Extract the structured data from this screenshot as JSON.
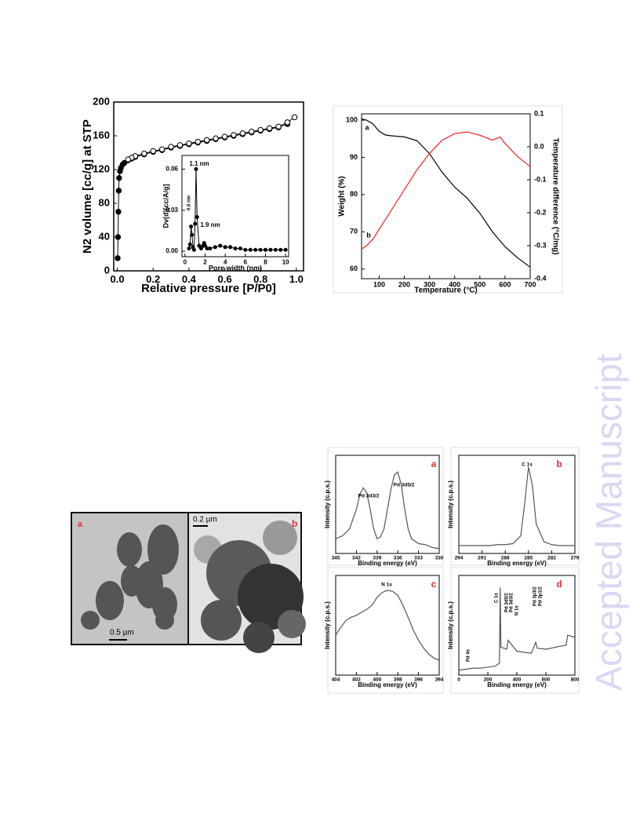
{
  "chart_data": [
    {
      "type": "scatter",
      "xlabel": "Relative pressure [P/P0]",
      "ylabel": "N2 volume [cc/g] at STP",
      "xlim": [
        -0.02,
        1.04
      ],
      "ylim": [
        0,
        200
      ],
      "xticks": [
        {
          "value": 0,
          "label": "0.0"
        },
        0.2,
        0.4,
        0.6,
        0.8,
        {
          "value": 1,
          "label": "1.0"
        }
      ],
      "yticks": [
        0,
        40,
        80,
        120,
        160,
        200
      ],
      "series": [
        {
          "filled": true,
          "color": "#000000",
          "x": [
            0.002,
            0.004,
            0.006,
            0.008,
            0.01,
            0.015,
            0.02,
            0.03,
            0.04,
            0.06,
            0.08,
            0.1,
            0.15,
            0.2,
            0.25,
            0.3,
            0.35,
            0.4,
            0.45,
            0.5,
            0.55,
            0.6,
            0.65,
            0.7,
            0.75,
            0.8,
            0.85,
            0.9,
            0.95
          ],
          "values": [
            15,
            40,
            70,
            95,
            110,
            118,
            122,
            126,
            128,
            131,
            133,
            135,
            138,
            141,
            143,
            146,
            148,
            150,
            152,
            154,
            156,
            158,
            160,
            162,
            164,
            166,
            168,
            170,
            174
          ]
        },
        {
          "filled": false,
          "color": "#000000",
          "x": [
            0.99,
            0.95,
            0.9,
            0.85,
            0.8,
            0.75,
            0.7,
            0.65,
            0.6,
            0.55,
            0.5,
            0.45,
            0.4,
            0.35,
            0.3,
            0.25,
            0.2,
            0.15,
            0.1,
            0.08,
            0.06
          ],
          "values": [
            182,
            176,
            171,
            169,
            167,
            165,
            163,
            161,
            159,
            157,
            155,
            153,
            151,
            149,
            147,
            144,
            142,
            139,
            136,
            134,
            132
          ]
        }
      ]
    },
    {
      "type": "scatter",
      "xlabel": "Pore width (nm)",
      "ylabel": "Dv(d)[cc/A/g]",
      "xlim": [
        -0.3,
        10.3
      ],
      "ylim": [
        -0.004,
        0.07
      ],
      "xticks": [
        0,
        2,
        4,
        6,
        8,
        10
      ],
      "yticks": [
        {
          "value": 0,
          "label": "0.00"
        },
        {
          "value": 0.03,
          "label": "0.03"
        },
        {
          "value": 0.06,
          "label": "0.06"
        }
      ],
      "annotations": [
        "1.1 nm",
        "0.6 nm",
        "1.9 nm"
      ],
      "series": [
        {
          "filled": true,
          "color": "#000000",
          "x": [
            0.4,
            0.5,
            0.6,
            0.7,
            0.8,
            0.9,
            1.0,
            1.1,
            1.2,
            1.4,
            1.6,
            1.8,
            1.9,
            2.0,
            2.2,
            2.5,
            3,
            3.5,
            4,
            4.5,
            5,
            5.5,
            6,
            6.5,
            7,
            7.5,
            8,
            8.5,
            9,
            9.5,
            10
          ],
          "values": [
            0.002,
            0.005,
            0.018,
            0.012,
            0.003,
            0.001,
            0.02,
            0.06,
            0.025,
            0.004,
            0.002,
            0.004,
            0.006,
            0.004,
            0.002,
            0.002,
            0.003,
            0.004,
            0.003,
            0.003,
            0.002,
            0.002,
            0.001,
            0.001,
            0.001,
            0.001,
            0.001,
            0.001,
            0.001,
            0.001,
            0.001
          ]
        }
      ]
    },
    {
      "type": "line",
      "xlabel": "Temperature (°C)",
      "ylabel": "Weight (%)",
      "y2label": "Temperature difference (°C/mg)",
      "xlim": [
        30,
        700
      ],
      "ylim": [
        57.4,
        101.7
      ],
      "y2lim": [
        -0.4,
        0.1
      ],
      "xticks": [
        100,
        200,
        300,
        400,
        500,
        600,
        700
      ],
      "yticks": [
        60,
        70,
        80,
        90,
        100
      ],
      "y2ticks": [
        -0.4,
        -0.3,
        -0.2,
        -0.1,
        {
          "value": 0,
          "label": "0.0"
        },
        0.1
      ],
      "annotations": [
        "a",
        "b"
      ],
      "series": [
        {
          "color": "#000000",
          "x": [
            30,
            50,
            75,
            100,
            125,
            150,
            200,
            250,
            300,
            350,
            400,
            450,
            500,
            550,
            600,
            650,
            700
          ],
          "values": [
            100.3,
            100,
            99,
            97,
            96,
            95.8,
            95.5,
            94.5,
            91,
            86,
            82,
            79,
            75,
            70,
            66,
            63,
            60.5
          ]
        },
        {
          "color": "#ff2020",
          "axis": "y2",
          "x": [
            30,
            50,
            75,
            100,
            125,
            150,
            200,
            250,
            300,
            350,
            400,
            450,
            500,
            550,
            580,
            600,
            650,
            700
          ],
          "values": [
            -0.31,
            -0.3,
            -0.28,
            -0.25,
            -0.22,
            -0.19,
            -0.13,
            -0.07,
            -0.02,
            0.02,
            0.04,
            0.045,
            0.035,
            0.02,
            0.03,
            0.01,
            -0.03,
            -0.06
          ]
        }
      ]
    },
    {
      "type": "line",
      "xlabel": "Binding energy (eV)",
      "ylabel": "Intensity (c.p.s.)",
      "panel_label": "a",
      "panel_label_color": "#e53030",
      "xlim": [
        345,
        330
      ],
      "ylim": [
        0,
        100
      ],
      "xticks": [
        345,
        342,
        339,
        336,
        333,
        330
      ],
      "annotations": [
        "Pd 3d3/2",
        "Pd 3d5/2"
      ],
      "series": [
        {
          "color": "#555555",
          "x": [
            345,
            344,
            343,
            342,
            341.5,
            341,
            340.5,
            340,
            339.5,
            339,
            338.5,
            338,
            337.5,
            337,
            336.5,
            336,
            335.5,
            335,
            334.5,
            334,
            333,
            332,
            331,
            330
          ],
          "values": [
            15,
            18,
            25,
            45,
            60,
            67,
            62,
            45,
            25,
            15,
            17,
            25,
            45,
            65,
            80,
            83,
            70,
            45,
            25,
            15,
            10,
            9,
            6,
            5
          ]
        }
      ]
    },
    {
      "type": "line",
      "xlabel": "Binding energy (eV)",
      "ylabel": "Intensity (c.p.s.)",
      "panel_label": "b",
      "panel_label_color": "#e53030",
      "xlim": [
        294,
        279
      ],
      "ylim": [
        0,
        100
      ],
      "xticks": [
        294,
        291,
        288,
        285,
        282,
        279
      ],
      "annotations": [
        "C 1s"
      ],
      "series": [
        {
          "color": "#555555",
          "x": [
            294,
            293,
            292,
            291,
            290,
            289,
            288,
            287,
            286,
            285.5,
            285,
            284.5,
            284,
            283,
            282,
            281,
            280,
            279
          ],
          "values": [
            8,
            8,
            8,
            8,
            8,
            9,
            9,
            10,
            18,
            50,
            88,
            70,
            30,
            12,
            9,
            8,
            8,
            8
          ]
        }
      ]
    },
    {
      "type": "line",
      "xlabel": "Binding energy (eV)",
      "ylabel": "Intensity (c.p.s.)",
      "panel_label": "c",
      "panel_label_color": "#e53030",
      "xlim": [
        404,
        394
      ],
      "ylim": [
        0,
        100
      ],
      "xticks": [
        404,
        402,
        400,
        398,
        396,
        394
      ],
      "annotations": [
        "N 1s"
      ],
      "series": [
        {
          "color": "#555555",
          "x": [
            404,
            403.5,
            403,
            402.5,
            402,
            401.5,
            401,
            400.5,
            400,
            399.5,
            399,
            398.5,
            398,
            397.5,
            397,
            396.5,
            396,
            395.5,
            395,
            394.5,
            394
          ],
          "values": [
            40,
            48,
            55,
            58,
            60,
            63,
            66,
            70,
            78,
            83,
            85,
            84,
            80,
            70,
            58,
            45,
            35,
            27,
            21,
            17,
            15
          ]
        }
      ]
    },
    {
      "type": "line",
      "xlabel": "Binding energy (eV)",
      "ylabel": "Intensity (c.p.s.)",
      "panel_label": "d",
      "panel_label_color": "#e53030",
      "xlim": [
        0,
        800
      ],
      "ylim": [
        0,
        100
      ],
      "xticks": [
        0,
        200,
        400,
        600,
        800
      ],
      "annotations": [
        "Pd 4s",
        "C 1s",
        "Pd 3d5/2",
        "Pd 3d3/2",
        "N 1s",
        "Pd 3p3/2",
        "Pd 3p1/2"
      ],
      "series": [
        {
          "color": "#555555",
          "x": [
            0,
            50,
            100,
            150,
            200,
            250,
            280,
            285,
            290,
            330,
            340,
            400,
            500,
            530,
            540,
            600,
            700,
            740,
            750,
            800
          ],
          "values": [
            5,
            6,
            7,
            7,
            8,
            9,
            12,
            88,
            28,
            26,
            35,
            24,
            22,
            33,
            27,
            26,
            29,
            30,
            40,
            38
          ]
        }
      ]
    }
  ],
  "tem_image": {
    "panels": [
      "a",
      "b"
    ],
    "scale_bars": [
      "0.5 µm",
      "0.2 µm"
    ]
  },
  "watermark": "Accepted Manuscript"
}
